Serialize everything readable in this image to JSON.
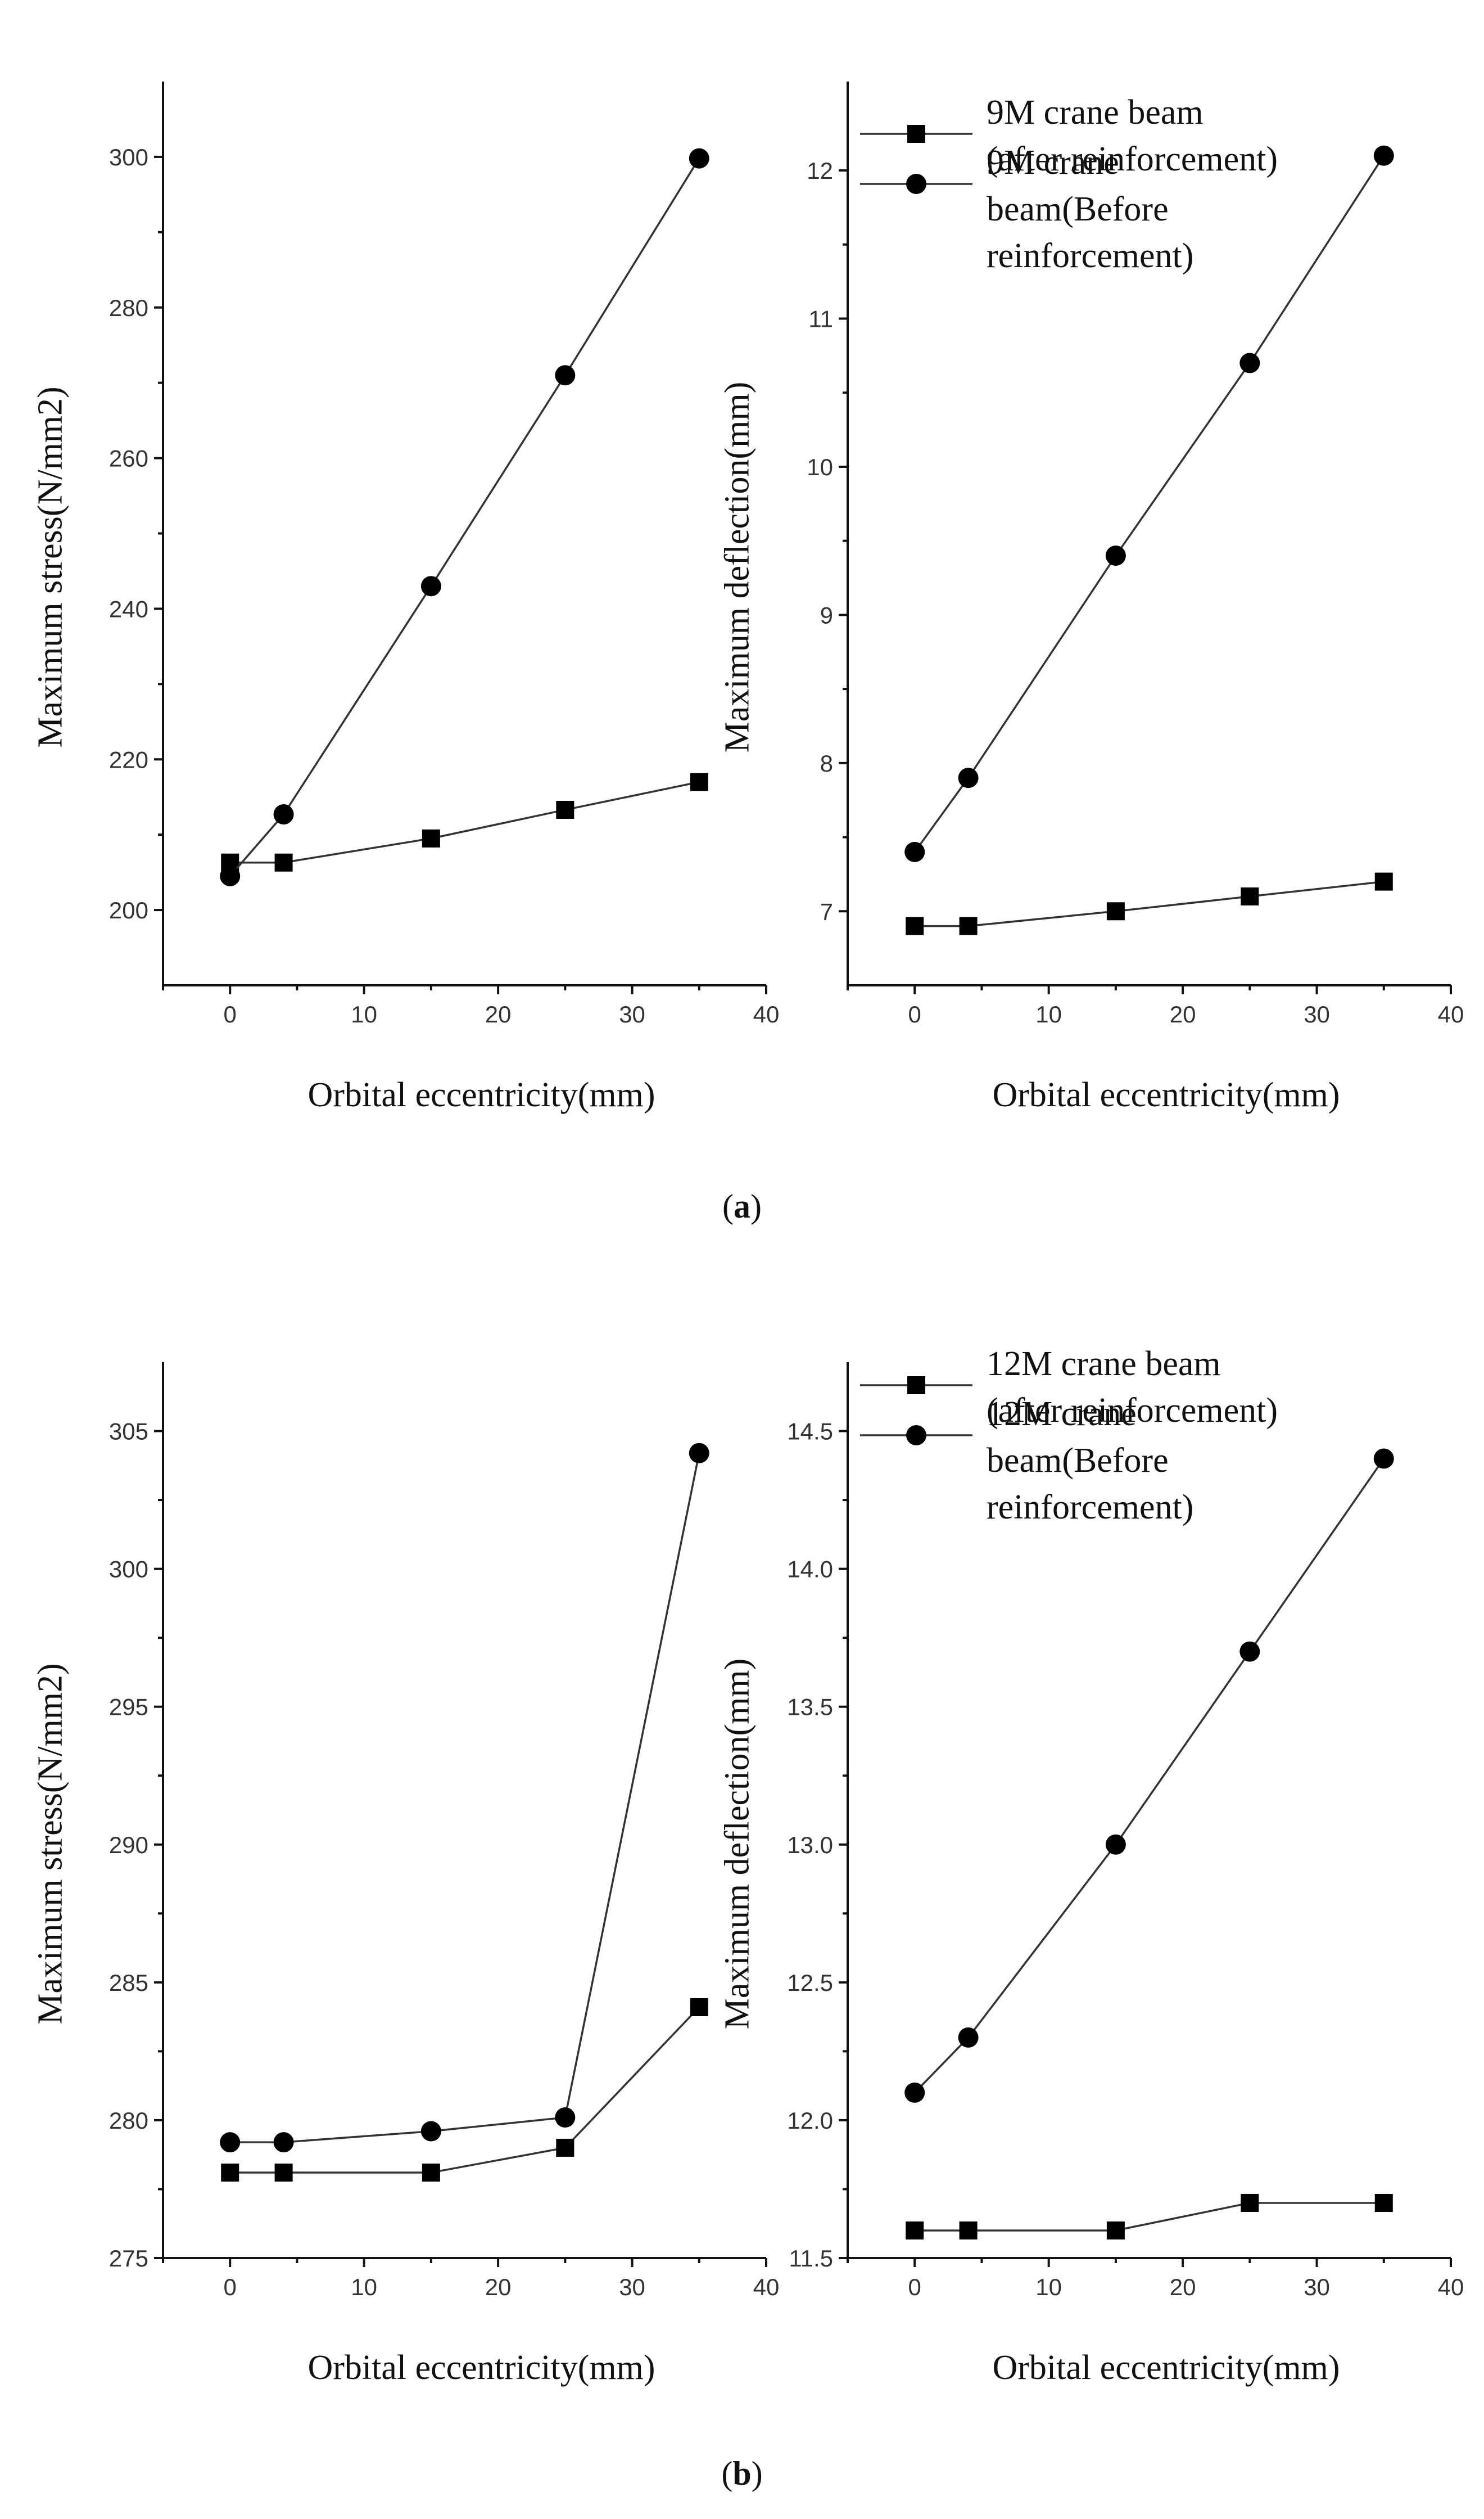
{
  "colors": {
    "axis": "#111111",
    "line": "#333333",
    "marker": "#000000",
    "background": "#ffffff"
  },
  "panel_labels": [
    {
      "open": "(",
      "letter": "a",
      "close": ")"
    },
    {
      "open": "(",
      "letter": "b",
      "close": ")"
    }
  ],
  "chart_data": [
    {
      "type": "line",
      "title": "",
      "xlabel": "Orbital eccentricity(mm)",
      "ylabel": "Maximum stress(N/mm2)",
      "xlim": [
        -5,
        40
      ],
      "ylim": [
        190,
        310
      ],
      "x_ticks": [
        0,
        10,
        20,
        30,
        40
      ],
      "y_ticks": [
        200,
        220,
        240,
        260,
        280,
        300
      ],
      "legend": [],
      "series": [
        {
          "name": "9M crane beam (after reinforcement)",
          "marker": "square",
          "x": [
            0,
            4,
            15,
            25,
            35
          ],
          "y": [
            206.3,
            206.3,
            209.5,
            213.3,
            217
          ]
        },
        {
          "name": "9M crane beam(Before reinforcement)",
          "marker": "circle",
          "x": [
            0,
            4,
            15,
            25,
            35
          ],
          "y": [
            204.5,
            212.7,
            243,
            271,
            299.8
          ]
        }
      ]
    },
    {
      "type": "line",
      "title": "",
      "xlabel": "Orbital eccentricity(mm)",
      "ylabel": "Maximum deflection(mm)",
      "xlim": [
        -5,
        40
      ],
      "ylim": [
        6.5,
        12.6
      ],
      "x_ticks": [
        0,
        10,
        20,
        30,
        40
      ],
      "y_ticks": [
        7,
        8,
        9,
        10,
        11,
        12
      ],
      "legend": [
        {
          "marker": "square",
          "lines": [
            "9M crane beam",
            "(after reinforcement)"
          ]
        },
        {
          "marker": "circle",
          "lines": [
            "9M crane",
            "beam(Before",
            "reinforcement)"
          ]
        }
      ],
      "series": [
        {
          "name": "9M crane beam (after reinforcement)",
          "marker": "square",
          "x": [
            0,
            4,
            15,
            25,
            35
          ],
          "y": [
            6.9,
            6.9,
            7.0,
            7.1,
            7.2
          ]
        },
        {
          "name": "9M crane beam(Before reinforcement)",
          "marker": "circle",
          "x": [
            0,
            4,
            15,
            25,
            35
          ],
          "y": [
            7.4,
            7.9,
            9.4,
            10.7,
            12.1
          ]
        }
      ]
    },
    {
      "type": "line",
      "title": "",
      "xlabel": "Orbital eccentricity(mm)",
      "ylabel": "Maximum stress(N/mm2)",
      "xlim": [
        -5,
        40
      ],
      "ylim": [
        275,
        307.5
      ],
      "x_ticks": [
        0,
        10,
        20,
        30,
        40
      ],
      "y_ticks": [
        275,
        280,
        285,
        290,
        295,
        300,
        305
      ],
      "legend": [],
      "series": [
        {
          "name": "12M crane beam (after reinforcement)",
          "marker": "square",
          "x": [
            0,
            4,
            15,
            25,
            35
          ],
          "y": [
            278.1,
            278.1,
            278.1,
            279,
            284.1
          ]
        },
        {
          "name": "12M crane beam(Before reinforcement)",
          "marker": "circle",
          "x": [
            0,
            4,
            15,
            25,
            35
          ],
          "y": [
            279.2,
            279.2,
            279.6,
            280.1,
            304.2
          ]
        }
      ]
    },
    {
      "type": "line",
      "title": "",
      "xlabel": "Orbital eccentricity(mm)",
      "ylabel": "Maximum deflection(mm)",
      "xlim": [
        -5,
        40
      ],
      "ylim": [
        11.5,
        14.75
      ],
      "x_ticks": [
        0,
        10,
        20,
        30,
        40
      ],
      "y_ticks": [
        11.5,
        12.0,
        12.5,
        13.0,
        13.5,
        14.0,
        14.5
      ],
      "y_tick_labels": [
        "11.5",
        "12.0",
        "12.5",
        "13.0",
        "13.5",
        "14.0",
        "14.5"
      ],
      "legend": [
        {
          "marker": "square",
          "lines": [
            "12M crane beam",
            "(after reinforcement)"
          ]
        },
        {
          "marker": "circle",
          "lines": [
            "12M crane",
            "beam(Before",
            "reinforcement)"
          ]
        }
      ],
      "series": [
        {
          "name": "12M crane beam (after reinforcement)",
          "marker": "square",
          "x": [
            0,
            4,
            15,
            25,
            35
          ],
          "y": [
            11.6,
            11.6,
            11.6,
            11.7,
            11.7
          ]
        },
        {
          "name": "12M crane beam(Before reinforcement)",
          "marker": "circle",
          "x": [
            0,
            4,
            15,
            25,
            35
          ],
          "y": [
            12.1,
            12.3,
            13.0,
            13.7,
            14.4
          ]
        }
      ]
    }
  ]
}
